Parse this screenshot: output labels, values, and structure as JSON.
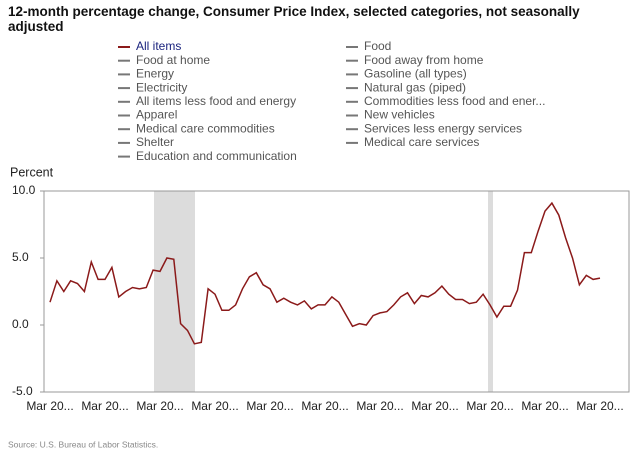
{
  "chart_data": {
    "type": "line",
    "title": "12-month percentage change, Consumer Price Index, selected categories, not seasonally adjusted",
    "y_label": "Percent",
    "source": "Source: U.S. Bureau of Labor Statistics.",
    "categories": [
      "Mar 20...",
      null,
      null,
      null,
      null,
      null,
      null,
      null,
      "Mar 20...",
      null,
      null,
      null,
      null,
      null,
      null,
      null,
      "Mar 20...",
      null,
      null,
      null,
      null,
      null,
      null,
      null,
      "Mar 20...",
      null,
      null,
      null,
      null,
      null,
      null,
      null,
      "Mar 20...",
      null,
      null,
      null,
      null,
      null,
      null,
      null,
      "Mar 20...",
      null,
      null,
      null,
      null,
      null,
      null,
      null,
      "Mar 20...",
      null,
      null,
      null,
      null,
      null,
      null,
      null,
      "Mar 20...",
      null,
      null,
      null,
      null,
      null,
      null,
      null,
      "Mar 20...",
      null,
      null,
      null,
      null,
      null,
      null,
      null,
      "Mar 20...",
      null,
      null,
      null,
      null,
      null,
      null,
      null,
      "Mar 20..."
    ],
    "series": [
      {
        "name": "All items",
        "color": "#8b1a1a",
        "active": true,
        "values": [
          1.7,
          3.3,
          2.5,
          3.3,
          3.1,
          2.5,
          4.7,
          3.4,
          3.4,
          4.3,
          2.1,
          2.5,
          2.8,
          2.7,
          2.8,
          4.1,
          4.0,
          5.0,
          4.9,
          0.1,
          -0.4,
          -1.4,
          -1.3,
          2.7,
          2.3,
          1.1,
          1.1,
          1.5,
          2.7,
          3.6,
          3.9,
          3.0,
          2.7,
          1.7,
          2.0,
          1.7,
          1.5,
          1.8,
          1.2,
          1.5,
          1.5,
          2.1,
          1.7,
          0.8,
          -0.1,
          0.1,
          0.0,
          0.7,
          0.9,
          1.0,
          1.5,
          2.1,
          2.4,
          1.6,
          2.2,
          2.1,
          2.4,
          2.9,
          2.3,
          1.9,
          1.9,
          1.6,
          1.7,
          2.3,
          1.5,
          0.6,
          1.4,
          1.4,
          2.6,
          5.4,
          5.4,
          7.0,
          8.5,
          9.1,
          8.2,
          6.5,
          5.0,
          3.0,
          3.7,
          3.4,
          3.5
        ]
      },
      {
        "name": "Food",
        "color": "#777777",
        "active": false
      },
      {
        "name": "Food at home",
        "color": "#777777",
        "active": false
      },
      {
        "name": "Food away from home",
        "color": "#777777",
        "active": false
      },
      {
        "name": "Energy",
        "color": "#777777",
        "active": false
      },
      {
        "name": "Gasoline (all types)",
        "color": "#777777",
        "active": false
      },
      {
        "name": "Electricity",
        "color": "#777777",
        "active": false
      },
      {
        "name": "Natural gas (piped)",
        "color": "#777777",
        "active": false
      },
      {
        "name": "All items less food and energy",
        "color": "#777777",
        "active": false
      },
      {
        "name": "Commodities less food and ener...",
        "color": "#777777",
        "active": false
      },
      {
        "name": "Apparel",
        "color": "#777777",
        "active": false
      },
      {
        "name": "New vehicles",
        "color": "#777777",
        "active": false
      },
      {
        "name": "Medical care commodities",
        "color": "#777777",
        "active": false
      },
      {
        "name": "Services less energy services",
        "color": "#777777",
        "active": false
      },
      {
        "name": "Shelter",
        "color": "#777777",
        "active": false
      },
      {
        "name": "Medical care services",
        "color": "#777777",
        "active": false
      },
      {
        "name": "Education and communication",
        "color": "#777777",
        "active": false
      }
    ],
    "ylim": [
      -5,
      10
    ],
    "yticks": [
      {
        "value": -5,
        "label": "-5.0"
      },
      {
        "value": 0,
        "label": "0.0"
      },
      {
        "value": 5,
        "label": "5.0"
      },
      {
        "value": 10,
        "label": "10.0"
      }
    ],
    "grid": false
  }
}
